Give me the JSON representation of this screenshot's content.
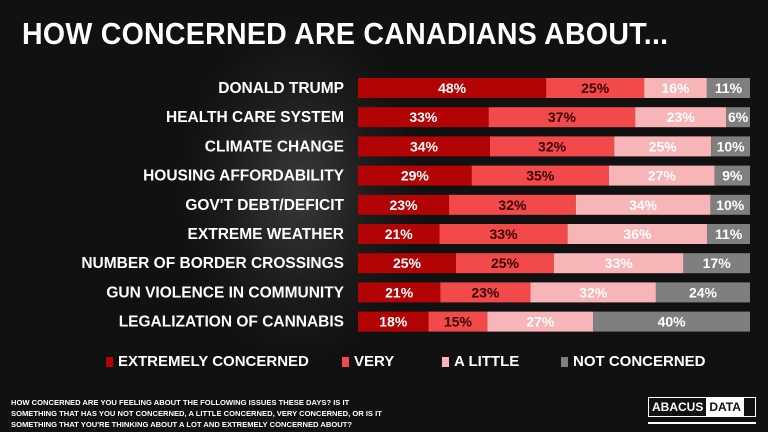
{
  "chart_data": {
    "type": "bar",
    "orientation": "horizontal",
    "stacked": true,
    "title": "HOW CONCERNED ARE CANADIANS ABOUT...",
    "categories": [
      "DONALD TRUMP",
      "HEALTH CARE SYSTEM",
      "CLIMATE CHANGE",
      "HOUSING AFFORDABILITY",
      "GOV'T DEBT/DEFICIT",
      "EXTREME WEATHER",
      "NUMBER OF BORDER CROSSINGS",
      "GUN VIOLENCE IN COMMUNITY",
      "LEGALIZATION OF CANNABIS"
    ],
    "series": [
      {
        "name": "EXTREMELY CONCERNED",
        "color": "#b20404",
        "label_color": "#ffffff",
        "values": [
          48,
          33,
          34,
          29,
          23,
          21,
          25,
          21,
          18
        ]
      },
      {
        "name": "VERY",
        "color": "#f24a4a",
        "label_color": "#3a0000",
        "values": [
          25,
          37,
          32,
          35,
          32,
          33,
          25,
          23,
          15
        ]
      },
      {
        "name": "A LITTLE",
        "color": "#f7b5b8",
        "label_color": "#ffffff",
        "values": [
          16,
          23,
          25,
          27,
          34,
          36,
          33,
          32,
          27
        ]
      },
      {
        "name": "NOT CONCERNED",
        "color": "#7f7f7f",
        "label_color": "#ffffff",
        "values": [
          11,
          6,
          10,
          9,
          10,
          11,
          17,
          24,
          40
        ]
      }
    ],
    "value_suffix": "%",
    "legend_position": "bottom",
    "grid": false
  },
  "footnote": "HOW CONCERNED ARE YOU FEELING ABOUT THE FOLLOWING ISSUES THESE DAYS? IS IT SOMETHING THAT HAS YOU NOT CONCERNED, A LITTLE CONCERNED, VERY CONCERNED, OR IS IT SOMETHING THAT YOU'RE THINKING ABOUT A LOT AND EXTREMELY CONCERNED ABOUT?",
  "logo": {
    "part1": "ABACUS",
    "part2": "DATA"
  }
}
